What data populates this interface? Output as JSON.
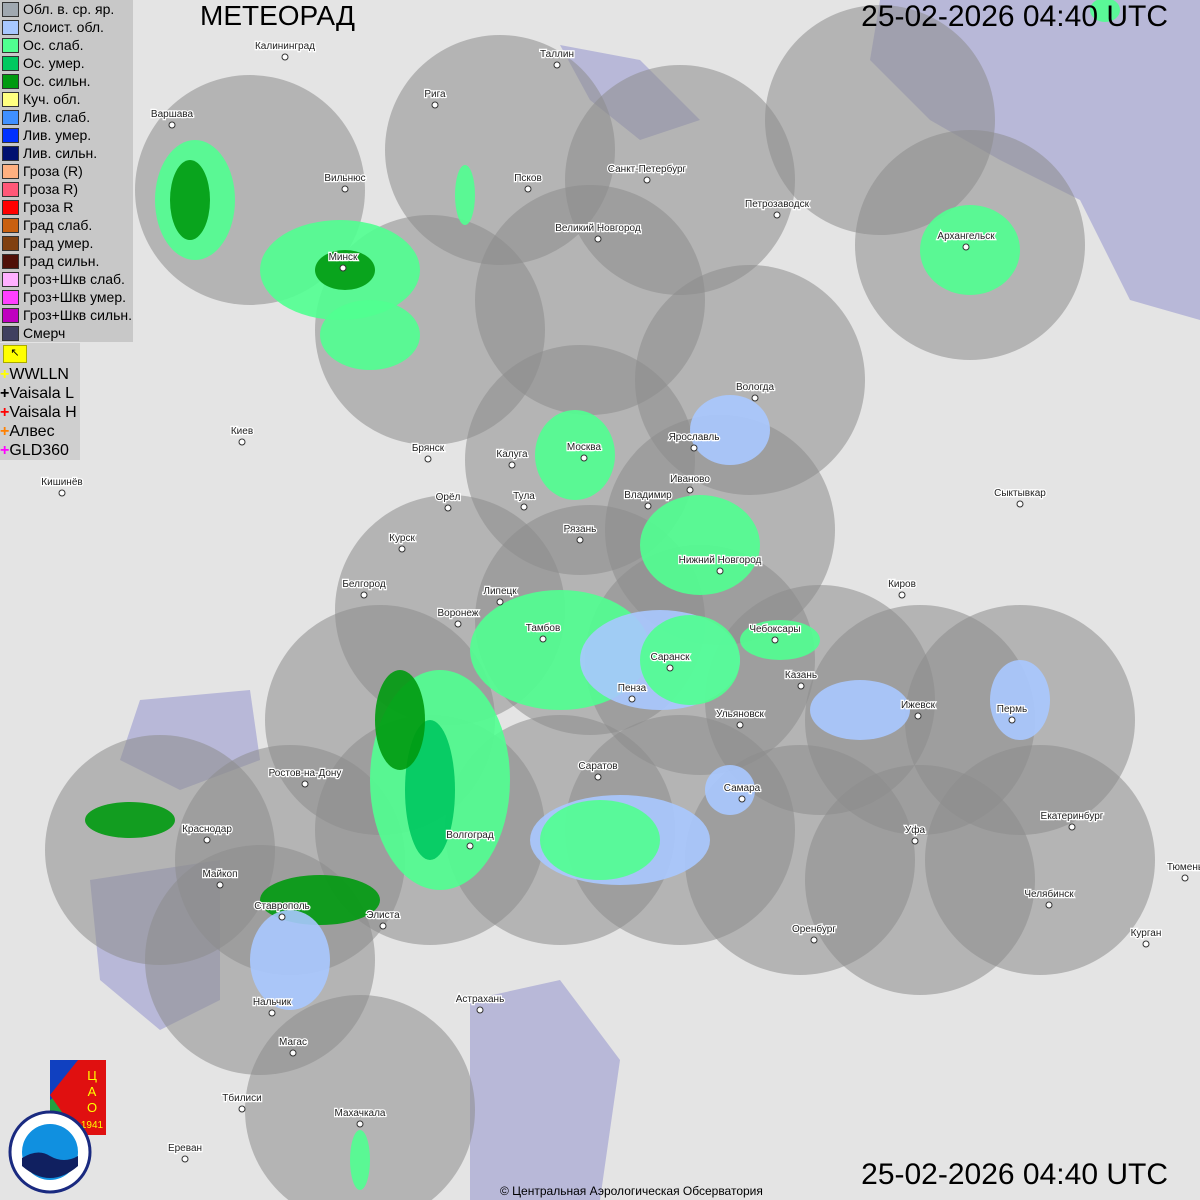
{
  "header": {
    "title": "МЕТЕОРАД",
    "timestamp": "25-02-2026  04:40 UTC"
  },
  "legend": [
    {
      "label": "Обл. в. ср. яр.",
      "color": "#a0a8b0"
    },
    {
      "label": "Слоист. обл.",
      "color": "#a8c8ff"
    },
    {
      "label": "Ос. слаб.",
      "color": "#50ff90"
    },
    {
      "label": "Ос. умер.",
      "color": "#00c860"
    },
    {
      "label": "Ос. сильн.",
      "color": "#009a10"
    },
    {
      "label": "Куч. обл.",
      "color": "#ffff80"
    },
    {
      "label": "Лив. слаб.",
      "color": "#4090ff"
    },
    {
      "label": "Лив. умер.",
      "color": "#0030ff"
    },
    {
      "label": "Лив. сильн.",
      "color": "#001070"
    },
    {
      "label": "Гроза (R)",
      "color": "#ffb080"
    },
    {
      "label": "Гроза R)",
      "color": "#ff5878"
    },
    {
      "label": "Гроза R",
      "color": "#ff0000"
    },
    {
      "label": "Град слаб.",
      "color": "#c86010"
    },
    {
      "label": "Град умер.",
      "color": "#804010"
    },
    {
      "label": "Град сильн.",
      "color": "#501008"
    },
    {
      "label": "Гроз+Шкв слаб.",
      "color": "#ffb0ff"
    },
    {
      "label": "Гроз+Шкв умер.",
      "color": "#ff40ff"
    },
    {
      "label": "Гроз+Шкв сильн.",
      "color": "#c000c0"
    },
    {
      "label": "Смерч",
      "color": "#404060"
    }
  ],
  "lightning": [
    {
      "label": "WWLLN",
      "color": "#ffff00"
    },
    {
      "label": "Vaisala L",
      "color": "#000000"
    },
    {
      "label": "Vaisala H",
      "color": "#ff0000"
    },
    {
      "label": "Алвес",
      "color": "#ff8000"
    },
    {
      "label": "GLD360",
      "color": "#ff00ff"
    }
  ],
  "cities": [
    "Калининград",
    "Таллин",
    "Рига",
    "Варшава",
    "Санкт-Петербург",
    "Псков",
    "Вильнюс",
    "Петрозаводск",
    "Великий Новгород",
    "Архангельск",
    "Минск",
    "Вологда",
    "Ярославль",
    "Киев",
    "Брянск",
    "Калуга",
    "Москва",
    "Иваново",
    "Кишинёв",
    "Владимир",
    "Тула",
    "Орёл",
    "Сыктывкар",
    "Рязань",
    "Курск",
    "Нижний Новгород",
    "Белгород",
    "Киров",
    "Липецк",
    "Воронеж",
    "Тамбов",
    "Чебоксары",
    "Саранск",
    "Казань",
    "Пенза",
    "Ижевск",
    "Пермь",
    "Ульяновск",
    "Саратов",
    "Ростов-на-Дону",
    "Самара",
    "Краснодар",
    "Екатеринбург",
    "Уфа",
    "Волгоград",
    "Майкоп",
    "Тюмень",
    "Челябинск",
    "Ставрополь",
    "Элиста",
    "Оренбург",
    "Курган",
    "Астрахань",
    "Нальчик",
    "Магас",
    "Тбилиси",
    "Махачкала",
    "Ереван"
  ],
  "logos": {
    "cao": "ЦАО 1941",
    "roshydromet": "РОСГИДРОМЕТ ROSHYDROMET"
  },
  "copyright": "© Центральная Аэрологическая Обсерватория"
}
